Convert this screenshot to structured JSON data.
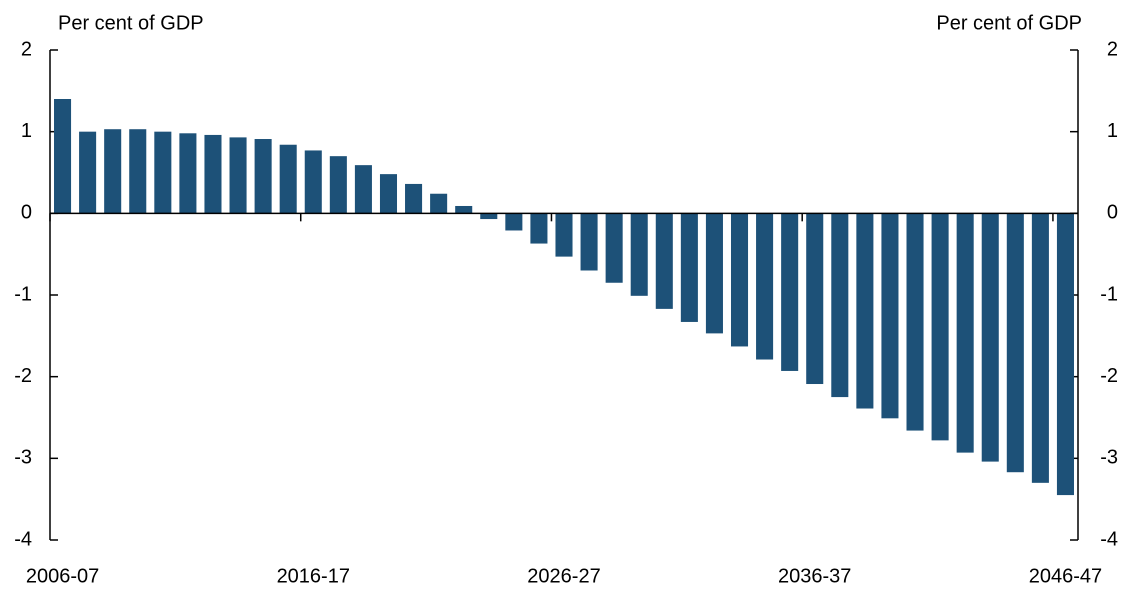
{
  "chart_data": {
    "type": "bar",
    "y_label": "Per cent of GDP",
    "y2_label": "Per cent of GDP",
    "categories": [
      "2006-07",
      null,
      null,
      null,
      null,
      null,
      null,
      null,
      null,
      null,
      "2016-17",
      null,
      null,
      null,
      null,
      null,
      null,
      null,
      null,
      null,
      "2026-27",
      null,
      null,
      null,
      null,
      null,
      null,
      null,
      null,
      null,
      "2036-37",
      null,
      null,
      null,
      null,
      null,
      null,
      null,
      null,
      null,
      "2046-47"
    ],
    "values": [
      1.4,
      1.0,
      1.03,
      1.03,
      1.0,
      0.98,
      0.96,
      0.93,
      0.91,
      0.84,
      0.77,
      0.7,
      0.59,
      0.48,
      0.36,
      0.24,
      0.09,
      -0.07,
      -0.21,
      -0.37,
      -0.53,
      -0.7,
      -0.85,
      -1.01,
      -1.17,
      -1.33,
      -1.47,
      -1.63,
      -1.79,
      -1.93,
      -2.09,
      -2.25,
      -2.39,
      -2.51,
      -2.66,
      -2.78,
      -2.93,
      -3.04,
      -3.17,
      -3.3,
      -3.45
    ],
    "color": "#1d5178",
    "ylim": [
      -4,
      2
    ],
    "yticks": [
      -4,
      -3,
      -2,
      -1,
      0,
      1,
      2
    ],
    "y2lim": [
      -4,
      2
    ],
    "y2ticks": [
      -4,
      -3,
      -2,
      -1,
      0,
      1,
      2
    ]
  }
}
